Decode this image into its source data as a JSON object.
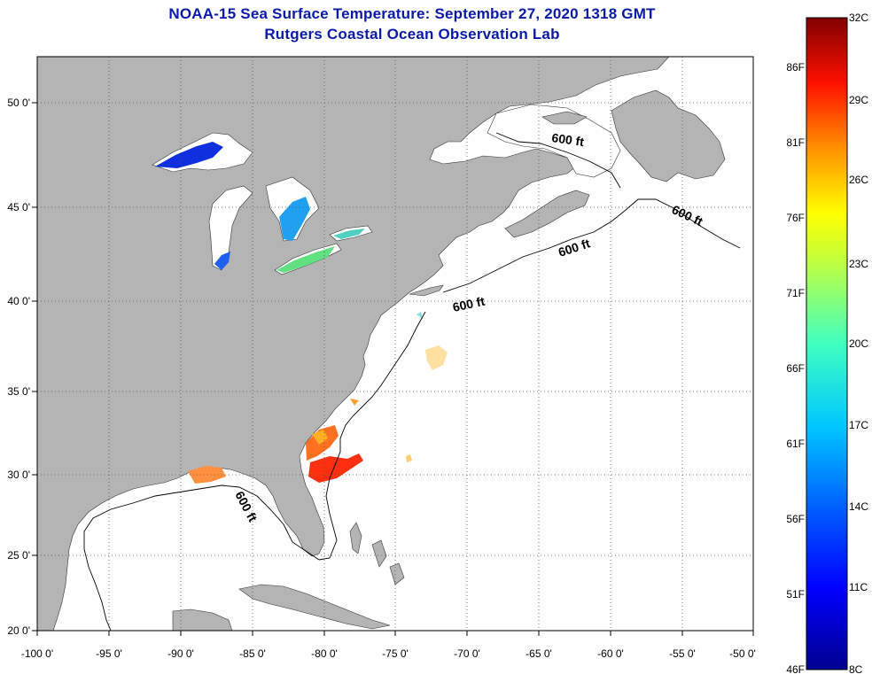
{
  "title": {
    "line1": "NOAA-15 Sea Surface Temperature:  September 27, 2020 1318 GMT",
    "line2": "Rutgers Coastal Ocean Observation Lab"
  },
  "map": {
    "lon_range": [
      -100,
      -50
    ],
    "lat_range": [
      20,
      52
    ],
    "x_ticks": [
      "-100 0'",
      "-95 0'",
      "-90 0'",
      "-85 0'",
      "-80 0'",
      "-75 0'",
      "-70 0'",
      "-65 0'",
      "-60 0'",
      "-55 0'",
      "-50 0'"
    ],
    "y_ticks": [
      "50 0'",
      "45 0'",
      "40 0'",
      "35 0'",
      "30 0'",
      "25 0'",
      "20 0'"
    ],
    "contour_labels": [
      "600 ft",
      "600 ft",
      "600 ft",
      "600 ft",
      "600 ft"
    ],
    "colors": {
      "land": "#b4b4b4",
      "ocean": "#ffffff",
      "grid": "#555555"
    }
  },
  "colorbar": {
    "top_labels": [
      "32C"
    ],
    "f_labels": [
      "86F",
      "81F",
      "76F",
      "71F",
      "66F",
      "61F",
      "56F",
      "51F",
      "46F"
    ],
    "c_labels": [
      "29C",
      "26C",
      "23C",
      "20C",
      "17C",
      "14C",
      "11C",
      "8C"
    ],
    "colormap": [
      "#00008f",
      "#0000ff",
      "#0080ff",
      "#00ffff",
      "#80ff80",
      "#ffff00",
      "#ff8000",
      "#ff0000",
      "#800000"
    ]
  }
}
